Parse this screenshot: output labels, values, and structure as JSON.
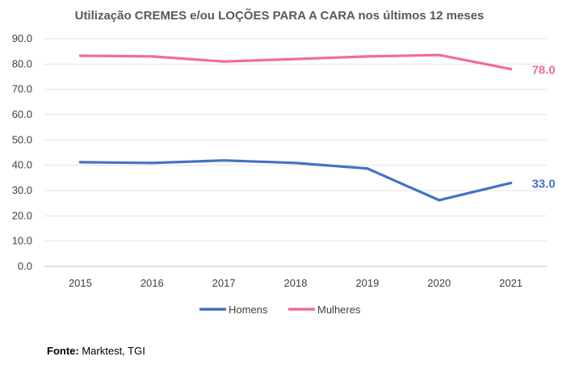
{
  "chart_data": {
    "type": "line",
    "title": "Utilização CREMES e/ou LOÇÕES PARA A CARA nos últimos 12 meses",
    "xlabel": "",
    "ylabel": "",
    "categories": [
      "2015",
      "2016",
      "2017",
      "2018",
      "2019",
      "2020",
      "2021"
    ],
    "ylim": [
      0,
      90
    ],
    "yticks": [
      0,
      10,
      20,
      30,
      40,
      50,
      60,
      70,
      80,
      90
    ],
    "ytick_labels": [
      "0.0",
      "10.0",
      "20.0",
      "30.0",
      "40.0",
      "50.0",
      "60.0",
      "70.0",
      "80.0",
      "90.0"
    ],
    "grid": true,
    "legend_position": "bottom",
    "series": [
      {
        "name": "Homens",
        "color": "#4472C4",
        "values": [
          41.2,
          40.9,
          41.9,
          40.9,
          38.7,
          26.2,
          33.0
        ],
        "end_label": "33.0"
      },
      {
        "name": "Mulheres",
        "color": "#F06C9B",
        "values": [
          83.3,
          83.0,
          81.0,
          82.0,
          83.0,
          83.6,
          78.0
        ],
        "end_label": "78.0"
      }
    ]
  },
  "footer": {
    "source_label": "Fonte:",
    "source_text": "Marktest, TGI"
  }
}
